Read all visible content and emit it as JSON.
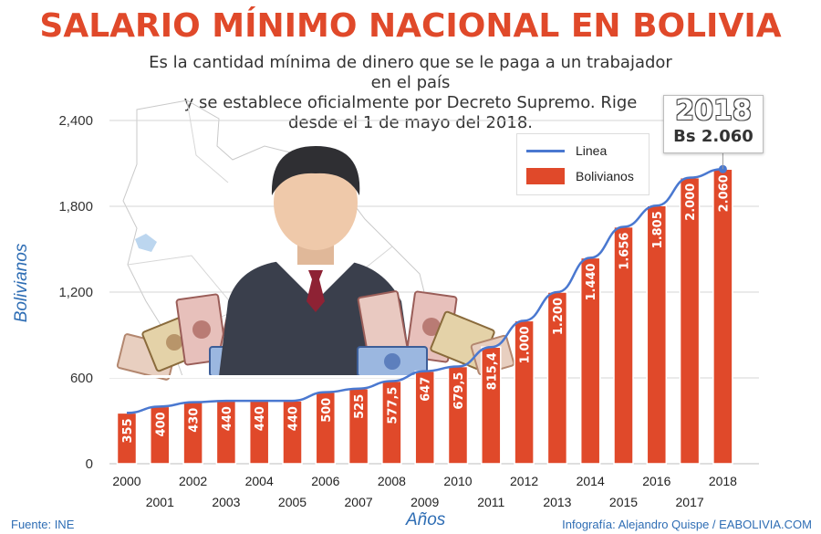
{
  "header": {
    "title": "SALARIO MÍNIMO NACIONAL EN BOLIVIA",
    "subtitle_line1": "Es la cantidad mínima de dinero que se le paga a un trabajador en el país",
    "subtitle_line2": "y se establece oficialmente por Decreto Supremo. Rige",
    "subtitle_line3": "desde el 1 de mayo del 2018."
  },
  "callout": {
    "year": "2018",
    "amount": "Bs 2.060"
  },
  "footer": {
    "source": "Fuente: INE",
    "credit": "Infografía: Alejandro Quispe / EABOLIVIA.COM"
  },
  "colors": {
    "bar": "#e0492a",
    "line": "#4a78d0",
    "title": "#e0492a",
    "axis_label": "#2e6db4"
  },
  "chart_data": {
    "type": "bar",
    "xlabel": "Años",
    "ylabel": "Bolivianos",
    "ylim": [
      0,
      2400
    ],
    "yticks": [
      "0",
      "600",
      "1,200",
      "1,800",
      "2,400"
    ],
    "ytick_values": [
      0,
      600,
      1200,
      1800,
      2400
    ],
    "grid": true,
    "legend_position": "top-right",
    "categories": [
      "2000",
      "2001",
      "2002",
      "2003",
      "2004",
      "2005",
      "2006",
      "2007",
      "2008",
      "2009",
      "2010",
      "2011",
      "2012",
      "2013",
      "2014",
      "2015",
      "2016",
      "2017",
      "2018"
    ],
    "series": [
      {
        "name": "Bolivianos",
        "type": "bar",
        "values": [
          355,
          400,
          430,
          440,
          440,
          440,
          500,
          525,
          577.5,
          647,
          679.5,
          815.4,
          1000,
          1200,
          1440,
          1656,
          1805,
          2000,
          2060
        ],
        "labels": [
          "355",
          "400",
          "430",
          "440",
          "440",
          "440",
          "500",
          "525",
          "577,5",
          "647",
          "679,5",
          "815,4",
          "1.000",
          "1.200",
          "1.440",
          "1.656",
          "1.805",
          "2.000",
          "2.060"
        ]
      },
      {
        "name": "Linea",
        "type": "line",
        "values": [
          355,
          400,
          430,
          440,
          440,
          440,
          500,
          525,
          577.5,
          647,
          679.5,
          815.4,
          1000,
          1200,
          1440,
          1656,
          1805,
          2000,
          2060
        ]
      }
    ]
  }
}
